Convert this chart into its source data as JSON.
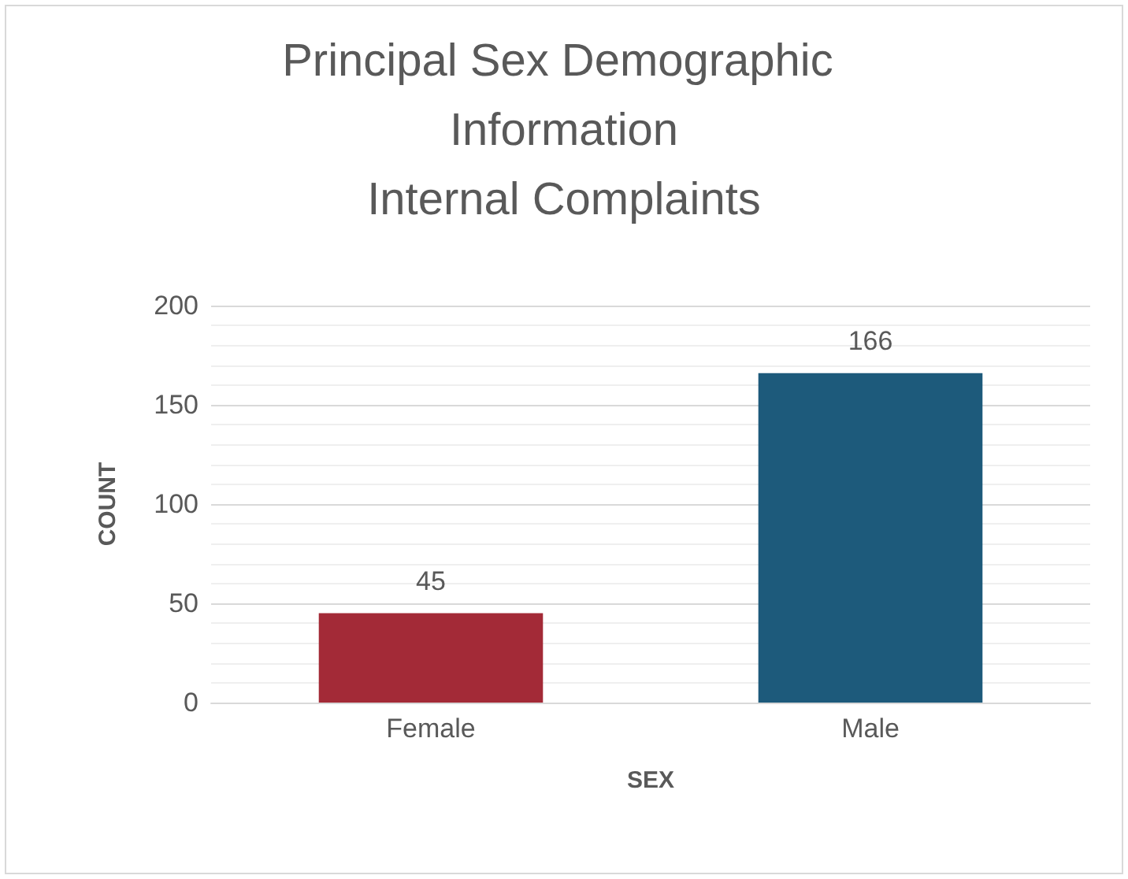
{
  "chart_data": {
    "type": "bar",
    "title": "Principal Sex Demographic Information\nInternal Complaints",
    "xlabel": "SEX",
    "ylabel": "COUNT",
    "categories": [
      "Female",
      "Male"
    ],
    "values": [
      45,
      166
    ],
    "colors": [
      "#a32a37",
      "#1d5a7b"
    ],
    "ylim": [
      0,
      200
    ],
    "yticks": [
      0,
      50,
      100,
      150,
      200
    ],
    "grid": "y",
    "data_labels": true
  }
}
